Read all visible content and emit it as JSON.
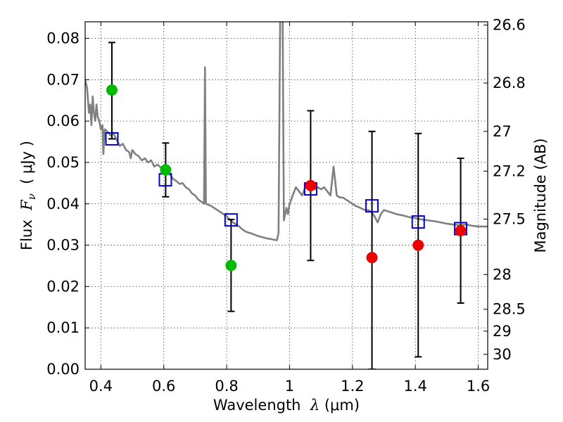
{
  "chart_data": {
    "type": "scatter",
    "title": "",
    "xlabel_prefix": "Wavelength  ",
    "xlabel_symbol": "λ",
    "xlabel_unit": " (μm)",
    "ylabel_prefix": "Flux  ",
    "ylabel_symbol": "F",
    "ylabel_subscript": "ν",
    "ylabel_unit": "  ( μJy )",
    "y2label": "Magnitude (AB)",
    "xlim": [
      0.35,
      1.63
    ],
    "ylim": [
      0.0,
      0.084
    ],
    "grid": true,
    "x_ticks": [
      {
        "value": 0.4,
        "label": "0.4"
      },
      {
        "value": 0.6,
        "label": "0.6"
      },
      {
        "value": 0.8,
        "label": "0.8"
      },
      {
        "value": 1.0,
        "label": "1"
      },
      {
        "value": 1.2,
        "label": "1.2"
      },
      {
        "value": 1.4,
        "label": "1.4"
      },
      {
        "value": 1.6,
        "label": "1.6"
      }
    ],
    "y_ticks": [
      {
        "value": 0.0,
        "label": "0.00"
      },
      {
        "value": 0.01,
        "label": "0.01"
      },
      {
        "value": 0.02,
        "label": "0.02"
      },
      {
        "value": 0.03,
        "label": "0.03"
      },
      {
        "value": 0.04,
        "label": "0.04"
      },
      {
        "value": 0.05,
        "label": "0.05"
      },
      {
        "value": 0.06,
        "label": "0.06"
      },
      {
        "value": 0.07,
        "label": "0.07"
      },
      {
        "value": 0.08,
        "label": "0.08"
      }
    ],
    "y2_ticks": [
      {
        "flux": 0.0832,
        "label": "26.6"
      },
      {
        "flux": 0.0692,
        "label": "26.8"
      },
      {
        "flux": 0.0575,
        "label": "27"
      },
      {
        "flux": 0.0479,
        "label": "27.2"
      },
      {
        "flux": 0.0363,
        "label": "27.5"
      },
      {
        "flux": 0.0229,
        "label": "28"
      },
      {
        "flux": 0.0145,
        "label": "28.5"
      },
      {
        "flux": 0.0092,
        "label": "29"
      },
      {
        "flux": 0.0036,
        "label": "30"
      }
    ],
    "series": [
      {
        "name": "template_spectrum",
        "kind": "line",
        "color": "#808080",
        "points": [
          [
            0.35,
            0.07
          ],
          [
            0.356,
            0.068
          ],
          [
            0.362,
            0.062
          ],
          [
            0.366,
            0.064
          ],
          [
            0.37,
            0.059
          ],
          [
            0.374,
            0.066
          ],
          [
            0.378,
            0.062
          ],
          [
            0.382,
            0.06
          ],
          [
            0.386,
            0.064
          ],
          [
            0.39,
            0.061
          ],
          [
            0.395,
            0.06
          ],
          [
            0.4,
            0.058
          ],
          [
            0.405,
            0.059
          ],
          [
            0.408,
            0.052
          ],
          [
            0.412,
            0.058
          ],
          [
            0.42,
            0.0575
          ],
          [
            0.43,
            0.0565
          ],
          [
            0.44,
            0.057
          ],
          [
            0.45,
            0.0555
          ],
          [
            0.46,
            0.054
          ],
          [
            0.47,
            0.0545
          ],
          [
            0.48,
            0.053
          ],
          [
            0.49,
            0.0525
          ],
          [
            0.495,
            0.051
          ],
          [
            0.5,
            0.053
          ],
          [
            0.51,
            0.052
          ],
          [
            0.52,
            0.0515
          ],
          [
            0.53,
            0.0505
          ],
          [
            0.54,
            0.051
          ],
          [
            0.55,
            0.05
          ],
          [
            0.56,
            0.0505
          ],
          [
            0.57,
            0.049
          ],
          [
            0.58,
            0.0495
          ],
          [
            0.59,
            0.0488
          ],
          [
            0.6,
            0.0478
          ],
          [
            0.61,
            0.0475
          ],
          [
            0.62,
            0.047
          ],
          [
            0.63,
            0.046
          ],
          [
            0.64,
            0.0455
          ],
          [
            0.65,
            0.0448
          ],
          [
            0.66,
            0.045
          ],
          [
            0.67,
            0.044
          ],
          [
            0.68,
            0.0435
          ],
          [
            0.69,
            0.0425
          ],
          [
            0.7,
            0.042
          ],
          [
            0.71,
            0.041
          ],
          [
            0.72,
            0.0405
          ],
          [
            0.728,
            0.04
          ],
          [
            0.731,
            0.073
          ],
          [
            0.734,
            0.04
          ],
          [
            0.74,
            0.0398
          ],
          [
            0.75,
            0.0395
          ],
          [
            0.76,
            0.039
          ],
          [
            0.77,
            0.0385
          ],
          [
            0.78,
            0.038
          ],
          [
            0.79,
            0.0375
          ],
          [
            0.8,
            0.037
          ],
          [
            0.81,
            0.0362
          ],
          [
            0.82,
            0.0355
          ],
          [
            0.83,
            0.035
          ],
          [
            0.84,
            0.0345
          ],
          [
            0.85,
            0.0338
          ],
          [
            0.86,
            0.0333
          ],
          [
            0.87,
            0.033
          ],
          [
            0.88,
            0.0328
          ],
          [
            0.89,
            0.0325
          ],
          [
            0.9,
            0.0322
          ],
          [
            0.91,
            0.032
          ],
          [
            0.92,
            0.0318
          ],
          [
            0.93,
            0.0316
          ],
          [
            0.94,
            0.0315
          ],
          [
            0.95,
            0.0313
          ],
          [
            0.96,
            0.0312
          ],
          [
            0.965,
            0.033
          ],
          [
            0.97,
            0.085
          ],
          [
            0.978,
            0.085
          ],
          [
            0.982,
            0.036
          ],
          [
            0.99,
            0.039
          ],
          [
            0.995,
            0.0375
          ],
          [
            1.0,
            0.04
          ],
          [
            1.01,
            0.042
          ],
          [
            1.02,
            0.044
          ],
          [
            1.03,
            0.043
          ],
          [
            1.04,
            0.042
          ],
          [
            1.05,
            0.044
          ],
          [
            1.06,
            0.0445
          ],
          [
            1.07,
            0.045
          ],
          [
            1.08,
            0.0435
          ],
          [
            1.09,
            0.044
          ],
          [
            1.1,
            0.0435
          ],
          [
            1.11,
            0.044
          ],
          [
            1.12,
            0.043
          ],
          [
            1.13,
            0.042
          ],
          [
            1.14,
            0.049
          ],
          [
            1.15,
            0.042
          ],
          [
            1.16,
            0.0415
          ],
          [
            1.17,
            0.0415
          ],
          [
            1.18,
            0.041
          ],
          [
            1.19,
            0.0405
          ],
          [
            1.2,
            0.04
          ],
          [
            1.21,
            0.0395
          ],
          [
            1.22,
            0.0392
          ],
          [
            1.23,
            0.0388
          ],
          [
            1.24,
            0.0385
          ],
          [
            1.25,
            0.0385
          ],
          [
            1.26,
            0.038
          ],
          [
            1.27,
            0.037
          ],
          [
            1.28,
            0.0355
          ],
          [
            1.29,
            0.0375
          ],
          [
            1.3,
            0.0385
          ],
          [
            1.32,
            0.038
          ],
          [
            1.34,
            0.0375
          ],
          [
            1.36,
            0.0372
          ],
          [
            1.38,
            0.0368
          ],
          [
            1.4,
            0.0365
          ],
          [
            1.42,
            0.0362
          ],
          [
            1.44,
            0.036
          ],
          [
            1.46,
            0.0358
          ],
          [
            1.48,
            0.0355
          ],
          [
            1.5,
            0.0352
          ],
          [
            1.52,
            0.035
          ],
          [
            1.54,
            0.0348
          ],
          [
            1.56,
            0.035
          ],
          [
            1.58,
            0.0347
          ],
          [
            1.6,
            0.0345
          ],
          [
            1.63,
            0.0345
          ]
        ]
      },
      {
        "name": "model_photometry",
        "kind": "open_square",
        "color": "#0000cc",
        "points": [
          [
            0.435,
            0.0557
          ],
          [
            0.605,
            0.0458
          ],
          [
            0.814,
            0.0361
          ],
          [
            1.067,
            0.0436
          ],
          [
            1.262,
            0.0395
          ],
          [
            1.409,
            0.0356
          ],
          [
            1.544,
            0.034
          ]
        ]
      },
      {
        "name": "optical_detections",
        "kind": "filled_circle",
        "color": "#00bb00",
        "points": [
          [
            0.435,
            0.0675
          ],
          [
            0.606,
            0.0482
          ],
          [
            0.814,
            0.0251
          ]
        ]
      },
      {
        "name": "infrared_detections",
        "kind": "filled_circle",
        "color": "#ee0000",
        "points": [
          [
            1.067,
            0.0444
          ],
          [
            1.262,
            0.027
          ],
          [
            1.409,
            0.03
          ],
          [
            1.544,
            0.0335
          ]
        ]
      },
      {
        "name": "error_bars",
        "kind": "errorbar",
        "color": "#000000",
        "bars": [
          {
            "x": 0.435,
            "low": 0.0557,
            "high": 0.079
          },
          {
            "x": 0.606,
            "low": 0.0417,
            "high": 0.0547
          },
          {
            "x": 0.814,
            "low": 0.014,
            "high": 0.0362
          },
          {
            "x": 1.067,
            "low": 0.0263,
            "high": 0.0625
          },
          {
            "x": 1.262,
            "low": 0.0,
            "high": 0.0575
          },
          {
            "x": 1.409,
            "low": 0.003,
            "high": 0.057
          },
          {
            "x": 1.544,
            "low": 0.016,
            "high": 0.051
          }
        ]
      }
    ]
  }
}
